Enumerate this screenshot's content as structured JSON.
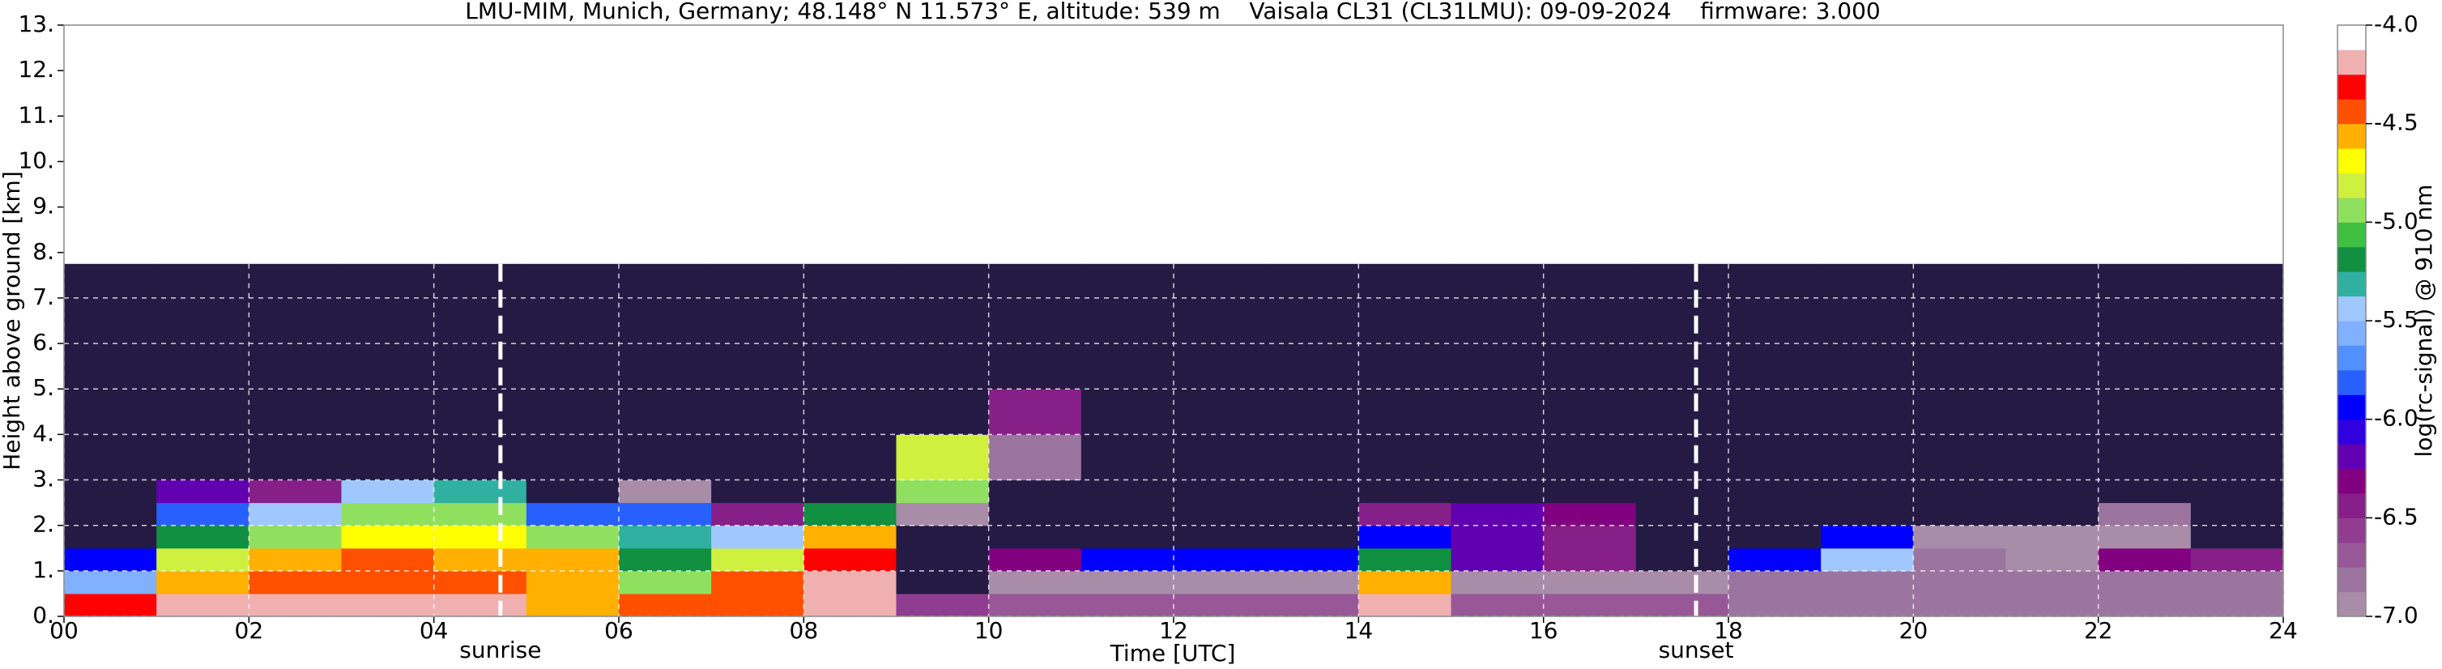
{
  "chart_data": {
    "type": "heatmap",
    "title": "LMU-MIM, Munich, Germany; 48.148° N 11.573° E, altitude: 539 m    Vaisala CL31 (CL31LMU): 09-09-2024    firmware: 3.000",
    "x_label": "Time [UTC]",
    "y_label": "Height above ground [km]",
    "colorbar_label": "log(rc-signal) @ 910 nm",
    "x_edges": [
      0,
      1,
      2,
      3,
      4,
      5,
      6,
      7,
      8,
      9,
      10,
      11,
      12,
      13,
      14,
      15,
      16,
      17,
      18,
      19,
      20,
      21,
      22,
      23,
      24
    ],
    "y_edges": [
      0,
      0.5,
      1,
      1.5,
      2,
      2.5,
      3,
      4,
      5,
      6,
      7.75
    ],
    "z": [
      [
        -4.3,
        -4.2,
        -4.2,
        -4.2,
        -4.2,
        -4.6,
        -4.4,
        -4.4,
        -4.2,
        -6.6,
        -6.7,
        -6.7,
        -6.7,
        -6.7,
        -4.2,
        -6.7,
        -6.7,
        -6.7,
        -6.8,
        -6.8,
        -6.8,
        -6.8,
        -6.8,
        -6.8
      ],
      [
        -5.6,
        -4.6,
        -4.4,
        -4.5,
        -4.4,
        -4.6,
        -5.0,
        -4.5,
        -4.2,
        -7.2,
        -6.9,
        -6.9,
        -6.9,
        -6.9,
        -4.6,
        -6.9,
        -6.9,
        -6.9,
        -6.8,
        -6.8,
        -6.8,
        -6.8,
        -6.8,
        -6.8
      ],
      [
        -6.0,
        -4.8,
        -4.6,
        -4.5,
        -4.6,
        -4.6,
        -5.2,
        -4.8,
        -4.3,
        -7.2,
        -6.3,
        -6.0,
        -6.0,
        -6.0,
        -5.2,
        -6.2,
        -6.5,
        -7.2,
        -6.0,
        -5.5,
        -6.8,
        -7.0,
        -6.3,
        -6.5
      ],
      [
        -7.2,
        -5.2,
        -5.0,
        -4.7,
        -4.7,
        -4.9,
        -5.3,
        -5.5,
        -4.6,
        -7.2,
        -7.2,
        -7.2,
        -7.2,
        -7.2,
        -6.0,
        -6.2,
        -6.5,
        -7.2,
        -7.2,
        -6.0,
        -7.0,
        -7.0,
        -7.0,
        -7.2
      ],
      [
        -7.2,
        -5.8,
        -5.5,
        -5.0,
        -5.0,
        -5.8,
        -5.8,
        -6.5,
        -5.2,
        -7.0,
        -7.2,
        -7.2,
        -7.2,
        -7.2,
        -6.4,
        -6.2,
        -6.3,
        -7.2,
        -7.2,
        -7.2,
        -7.2,
        -7.2,
        -6.8,
        -7.2
      ],
      [
        -7.2,
        -6.2,
        -6.5,
        -5.4,
        -5.3,
        -7.2,
        -7.0,
        -7.2,
        -7.2,
        -4.9,
        -7.2,
        -7.2,
        -7.2,
        -7.2,
        -7.2,
        -7.2,
        -7.2,
        -7.2,
        -7.2,
        -7.2,
        -7.2,
        -7.2,
        -7.2,
        -7.2
      ],
      [
        -7.2,
        -7.2,
        -7.2,
        -7.2,
        -7.2,
        -7.2,
        -7.2,
        -7.2,
        -7.2,
        -4.8,
        -6.8,
        -7.2,
        -7.2,
        -7.2,
        -7.2,
        -7.2,
        -7.2,
        -7.2,
        -7.2,
        -7.2,
        -7.2,
        -7.2,
        -7.2,
        -7.2
      ],
      [
        -7.2,
        -7.2,
        -7.2,
        -7.2,
        -7.2,
        -7.2,
        -7.2,
        -7.2,
        -7.2,
        -7.2,
        -6.5,
        -7.2,
        -7.2,
        -7.2,
        -7.2,
        -7.2,
        -7.2,
        -7.2,
        -7.2,
        -7.2,
        -7.2,
        -7.2,
        -7.2,
        -7.2
      ],
      [
        -7.2,
        -7.2,
        -7.2,
        -7.2,
        -7.2,
        -7.2,
        -7.2,
        -7.2,
        -7.2,
        -7.2,
        -7.2,
        -7.2,
        -7.2,
        -7.2,
        -7.2,
        -7.2,
        -7.2,
        -7.2,
        -7.2,
        -7.2,
        -7.2,
        -7.2,
        -7.2,
        -7.2
      ],
      [
        -7.2,
        -7.2,
        -7.2,
        -7.2,
        -7.2,
        -7.2,
        -7.2,
        -7.2,
        -7.2,
        -7.2,
        -7.2,
        -7.2,
        -7.2,
        -7.2,
        -7.2,
        -7.2,
        -7.2,
        -7.2,
        -7.2,
        -7.2,
        -7.2,
        -7.2,
        -7.2,
        -7.2
      ]
    ],
    "xlim": [
      0,
      24
    ],
    "ylim": [
      0,
      13
    ],
    "zlim": [
      -7,
      -4
    ],
    "xticks": [
      {
        "value": 0,
        "label": "00"
      },
      {
        "value": 2,
        "label": "02"
      },
      {
        "value": 4,
        "label": "04"
      },
      {
        "value": 6,
        "label": "06"
      },
      {
        "value": 8,
        "label": "08"
      },
      10,
      12,
      14,
      16,
      18,
      20,
      22,
      24
    ],
    "yticks": [
      {
        "value": 0,
        "label": "0."
      },
      {
        "value": 1,
        "label": "1."
      },
      {
        "value": 2,
        "label": "2."
      },
      {
        "value": 3,
        "label": "3."
      },
      {
        "value": 4,
        "label": "4."
      },
      {
        "value": 5,
        "label": "5."
      },
      {
        "value": 6,
        "label": "6."
      },
      {
        "value": 7,
        "label": "7."
      },
      {
        "value": 8,
        "label": "8."
      },
      {
        "value": 9,
        "label": "9."
      },
      {
        "value": 10,
        "label": "10."
      },
      {
        "value": 11,
        "label": "11."
      },
      {
        "value": 12,
        "label": "12."
      },
      {
        "value": 13,
        "label": "13."
      }
    ],
    "zticks": [
      {
        "value": -7,
        "label": "-7.0"
      },
      -6.5,
      {
        "value": -6,
        "label": "-6.0"
      },
      -5.5,
      {
        "value": -5,
        "label": "-5.0"
      },
      -4.5,
      {
        "value": -4,
        "label": "-4.0"
      }
    ],
    "colors": [
      "#a88ca8",
      "#9c74a0",
      "#985898",
      "#903c90",
      "#862088",
      "#800080",
      "#6000b0",
      "#3000e0",
      "#0000ff",
      "#2860ff",
      "#5090ff",
      "#80b0ff",
      "#a0c8ff",
      "#30b0a0",
      "#109040",
      "#40c040",
      "#90e060",
      "#d0f040",
      "#ffff00",
      "#ffb000",
      "#ff5000",
      "#ff0000",
      "#f0b0b0",
      "#ffffff"
    ],
    "under_color": "#241a44",
    "grid": true,
    "vlines": [
      {
        "x": 4.72,
        "label": "sunrise"
      },
      {
        "x": 17.65,
        "label": "sunset"
      }
    ]
  }
}
